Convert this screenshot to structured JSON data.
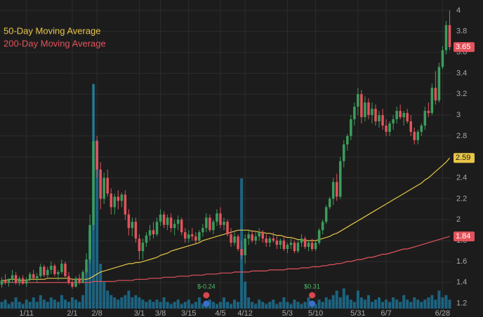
{
  "chart_data": {
    "type": "candlestick",
    "categories": [
      null,
      null,
      null,
      null,
      null,
      null,
      null,
      "1/11",
      null,
      null,
      null,
      null,
      null,
      null,
      null,
      null,
      null,
      null,
      null,
      null,
      "2/1",
      null,
      null,
      null,
      null,
      null,
      null,
      "2/8",
      null,
      null,
      null,
      null,
      null,
      null,
      null,
      null,
      null,
      null,
      null,
      "3/1",
      null,
      null,
      null,
      null,
      null,
      "3/8",
      null,
      null,
      null,
      null,
      null,
      null,
      null,
      "3/15",
      null,
      null,
      null,
      null,
      null,
      null,
      null,
      null,
      "4/5",
      null,
      null,
      null,
      null,
      null,
      null,
      "4/12",
      null,
      null,
      null,
      null,
      null,
      null,
      null,
      null,
      null,
      null,
      null,
      "5/3",
      null,
      null,
      null,
      null,
      null,
      null,
      null,
      "5/10",
      null,
      null,
      null,
      null,
      null,
      null,
      null,
      null,
      null,
      null,
      null,
      "5/31",
      null,
      null,
      null,
      null,
      null,
      null,
      null,
      "6/7",
      null,
      null,
      null,
      null,
      null,
      null,
      null,
      null,
      null,
      null,
      null,
      null,
      null,
      null,
      null,
      "6/28",
      null,
      null
    ],
    "ohlc": [
      [
        1.38,
        1.45,
        1.35,
        1.42
      ],
      [
        1.42,
        1.48,
        1.38,
        1.4
      ],
      [
        1.4,
        1.44,
        1.36,
        1.43
      ],
      [
        1.43,
        1.52,
        1.4,
        1.47
      ],
      [
        1.47,
        1.5,
        1.38,
        1.4
      ],
      [
        1.4,
        1.46,
        1.37,
        1.44
      ],
      [
        1.44,
        1.47,
        1.38,
        1.39
      ],
      [
        1.39,
        1.45,
        1.36,
        1.43
      ],
      [
        1.43,
        1.5,
        1.41,
        1.48
      ],
      [
        1.48,
        1.52,
        1.42,
        1.44
      ],
      [
        1.44,
        1.49,
        1.4,
        1.46
      ],
      [
        1.46,
        1.58,
        1.44,
        1.55
      ],
      [
        1.55,
        1.57,
        1.45,
        1.47
      ],
      [
        1.47,
        1.55,
        1.44,
        1.52
      ],
      [
        1.52,
        1.6,
        1.48,
        1.56
      ],
      [
        1.56,
        1.58,
        1.46,
        1.48
      ],
      [
        1.48,
        1.52,
        1.42,
        1.5
      ],
      [
        1.5,
        1.62,
        1.48,
        1.58
      ],
      [
        1.58,
        1.6,
        1.45,
        1.46
      ],
      [
        1.46,
        1.5,
        1.38,
        1.4
      ],
      [
        1.4,
        1.44,
        1.34,
        1.36
      ],
      [
        1.36,
        1.46,
        1.35,
        1.44
      ],
      [
        1.44,
        1.48,
        1.38,
        1.4
      ],
      [
        1.4,
        1.52,
        1.39,
        1.5
      ],
      [
        1.5,
        1.68,
        1.48,
        1.62
      ],
      [
        1.62,
        2.05,
        1.58,
        1.95
      ],
      [
        1.95,
        3.3,
        1.9,
        2.75
      ],
      [
        2.75,
        2.8,
        2.4,
        2.48
      ],
      [
        2.48,
        2.55,
        2.1,
        2.2
      ],
      [
        2.2,
        2.45,
        2.15,
        2.4
      ],
      [
        2.4,
        2.48,
        2.22,
        2.25
      ],
      [
        2.25,
        2.3,
        2.05,
        2.12
      ],
      [
        2.12,
        2.25,
        2.05,
        2.22
      ],
      [
        2.22,
        2.28,
        2.1,
        2.18
      ],
      [
        2.18,
        2.26,
        2.12,
        2.24
      ],
      [
        2.24,
        2.28,
        2.0,
        2.05
      ],
      [
        2.05,
        2.1,
        1.85,
        1.92
      ],
      [
        1.92,
        2.02,
        1.84,
        1.98
      ],
      [
        1.98,
        2.02,
        1.78,
        1.82
      ],
      [
        1.82,
        1.86,
        1.62,
        1.7
      ],
      [
        1.7,
        1.82,
        1.62,
        1.78
      ],
      [
        1.78,
        1.88,
        1.74,
        1.85
      ],
      [
        1.85,
        1.95,
        1.8,
        1.9
      ],
      [
        1.9,
        1.98,
        1.82,
        1.86
      ],
      [
        1.86,
        2.02,
        1.84,
        1.98
      ],
      [
        1.98,
        2.1,
        1.94,
        2.05
      ],
      [
        2.05,
        2.08,
        1.92,
        1.95
      ],
      [
        1.95,
        2.05,
        1.9,
        2.02
      ],
      [
        2.02,
        2.06,
        1.88,
        1.92
      ],
      [
        1.92,
        2.0,
        1.85,
        1.96
      ],
      [
        1.96,
        2.04,
        1.9,
        2.0
      ],
      [
        2.0,
        2.02,
        1.85,
        1.88
      ],
      [
        1.88,
        1.92,
        1.78,
        1.82
      ],
      [
        1.82,
        1.9,
        1.78,
        1.86
      ],
      [
        1.86,
        1.92,
        1.8,
        1.84
      ],
      [
        1.84,
        1.88,
        1.76,
        1.8
      ],
      [
        1.8,
        1.9,
        1.78,
        1.88
      ],
      [
        1.88,
        1.96,
        1.84,
        1.92
      ],
      [
        1.92,
        2.06,
        1.88,
        2.02
      ],
      [
        2.02,
        2.05,
        1.88,
        1.9
      ],
      [
        1.9,
        2.0,
        1.86,
        1.98
      ],
      [
        1.98,
        2.1,
        1.94,
        2.06
      ],
      [
        2.06,
        2.12,
        1.92,
        1.95
      ],
      [
        1.95,
        2.02,
        1.9,
        1.98
      ],
      [
        1.98,
        2.0,
        1.84,
        1.86
      ],
      [
        1.86,
        1.92,
        1.74,
        1.78
      ],
      [
        1.78,
        1.88,
        1.75,
        1.84
      ],
      [
        1.84,
        1.86,
        1.7,
        1.72
      ],
      [
        1.72,
        1.8,
        1.62,
        1.66
      ],
      [
        1.66,
        1.86,
        1.58,
        1.82
      ],
      [
        1.82,
        1.9,
        1.76,
        1.86
      ],
      [
        1.86,
        1.9,
        1.78,
        1.8
      ],
      [
        1.8,
        1.88,
        1.76,
        1.84
      ],
      [
        1.84,
        1.92,
        1.8,
        1.88
      ],
      [
        1.88,
        1.9,
        1.78,
        1.82
      ],
      [
        1.82,
        1.86,
        1.74,
        1.78
      ],
      [
        1.78,
        1.84,
        1.74,
        1.82
      ],
      [
        1.82,
        1.88,
        1.78,
        1.8
      ],
      [
        1.8,
        1.84,
        1.72,
        1.76
      ],
      [
        1.76,
        1.82,
        1.72,
        1.8
      ],
      [
        1.8,
        1.84,
        1.7,
        1.72
      ],
      [
        1.72,
        1.78,
        1.68,
        1.76
      ],
      [
        1.76,
        1.82,
        1.72,
        1.78
      ],
      [
        1.78,
        1.8,
        1.68,
        1.7
      ],
      [
        1.7,
        1.8,
        1.68,
        1.78
      ],
      [
        1.78,
        1.86,
        1.74,
        1.82
      ],
      [
        1.82,
        1.84,
        1.72,
        1.74
      ],
      [
        1.74,
        1.8,
        1.7,
        1.78
      ],
      [
        1.78,
        1.82,
        1.7,
        1.72
      ],
      [
        1.72,
        1.8,
        1.7,
        1.78
      ],
      [
        1.78,
        1.92,
        1.76,
        1.9
      ],
      [
        1.9,
        2.0,
        1.86,
        1.98
      ],
      [
        1.98,
        2.14,
        1.96,
        2.12
      ],
      [
        2.12,
        2.22,
        2.1,
        2.2
      ],
      [
        2.2,
        2.4,
        2.14,
        2.36
      ],
      [
        2.36,
        2.44,
        2.18,
        2.22
      ],
      [
        2.22,
        2.6,
        2.2,
        2.56
      ],
      [
        2.56,
        2.76,
        2.5,
        2.72
      ],
      [
        2.72,
        2.82,
        2.66,
        2.8
      ],
      [
        2.8,
        3.0,
        2.76,
        2.96
      ],
      [
        2.96,
        3.12,
        2.9,
        3.08
      ],
      [
        3.08,
        3.26,
        3.0,
        3.2
      ],
      [
        3.2,
        3.24,
        2.92,
        2.98
      ],
      [
        2.98,
        3.18,
        2.94,
        3.12
      ],
      [
        3.12,
        3.16,
        2.96,
        3.0
      ],
      [
        3.0,
        3.12,
        2.92,
        3.06
      ],
      [
        3.06,
        3.1,
        2.9,
        2.94
      ],
      [
        2.94,
        3.04,
        2.88,
        3.0
      ],
      [
        3.0,
        3.06,
        2.86,
        2.9
      ],
      [
        2.9,
        2.96,
        2.8,
        2.84
      ],
      [
        2.84,
        2.94,
        2.8,
        2.92
      ],
      [
        2.92,
        3.0,
        2.86,
        2.96
      ],
      [
        2.96,
        3.08,
        2.92,
        3.04
      ],
      [
        3.04,
        3.1,
        2.96,
        2.98
      ],
      [
        2.98,
        3.04,
        2.9,
        3.02
      ],
      [
        3.02,
        3.06,
        2.92,
        2.94
      ],
      [
        2.94,
        3.0,
        2.8,
        2.84
      ],
      [
        2.84,
        2.88,
        2.72,
        2.76
      ],
      [
        2.76,
        2.86,
        2.72,
        2.84
      ],
      [
        2.84,
        2.92,
        2.8,
        2.9
      ],
      [
        2.9,
        3.08,
        2.86,
        3.04
      ],
      [
        3.04,
        3.12,
        2.98,
        3.02
      ],
      [
        3.02,
        3.3,
        3.0,
        3.26
      ],
      [
        3.26,
        3.42,
        3.1,
        3.14
      ],
      [
        3.14,
        3.5,
        3.12,
        3.46
      ],
      [
        3.46,
        3.66,
        3.44,
        3.62
      ],
      [
        3.62,
        3.9,
        3.58,
        3.86
      ],
      [
        3.86,
        4.0,
        3.62,
        3.65
      ]
    ],
    "volume": [
      3,
      4,
      2,
      3,
      5,
      3,
      2,
      4,
      3,
      5,
      3,
      6,
      4,
      3,
      5,
      4,
      3,
      6,
      4,
      3,
      5,
      4,
      3,
      6,
      18,
      35,
      100,
      75,
      20,
      12,
      8,
      6,
      5,
      4,
      5,
      6,
      8,
      5,
      6,
      5,
      4,
      3,
      4,
      3,
      4,
      3,
      5,
      3,
      2,
      3,
      4,
      2,
      3,
      4,
      2,
      3,
      5,
      2,
      3,
      4,
      3,
      2,
      3,
      5,
      3,
      2,
      4,
      3,
      58,
      12,
      5,
      3,
      2,
      4,
      3,
      2,
      3,
      4,
      2,
      3,
      5,
      3,
      2,
      4,
      3,
      2,
      3,
      5,
      3,
      2,
      4,
      3,
      5,
      4,
      6,
      8,
      5,
      9,
      6,
      4,
      3,
      8,
      5,
      4,
      6,
      3,
      4,
      5,
      3,
      4,
      3,
      5,
      4,
      3,
      6,
      4,
      3,
      5,
      4,
      3,
      4,
      5,
      6,
      4,
      8,
      5,
      6,
      4
    ],
    "earnings": [
      null,
      null,
      null,
      null,
      null,
      null,
      null,
      null,
      null,
      null,
      null,
      null,
      null,
      null,
      null,
      null,
      null,
      null,
      null,
      null,
      null,
      null,
      null,
      null,
      null,
      null,
      null,
      null,
      null,
      null,
      null,
      null,
      null,
      null,
      null,
      null,
      null,
      null,
      null,
      null,
      null,
      null,
      null,
      null,
      null,
      null,
      null,
      null,
      null,
      null,
      null,
      null,
      null,
      null,
      null,
      null,
      null,
      null,
      "$-0.24",
      null,
      null,
      null,
      null,
      null,
      null,
      null,
      null,
      null,
      null,
      null,
      null,
      null,
      null,
      null,
      null,
      null,
      null,
      null,
      null,
      null,
      null,
      null,
      null,
      null,
      null,
      null,
      null,
      null,
      "$0.31",
      null,
      null,
      null,
      null,
      null,
      null,
      null,
      null,
      null,
      null,
      null,
      null,
      null,
      null,
      null,
      null,
      null,
      null,
      null,
      null,
      null,
      null,
      null,
      null,
      null,
      null,
      null,
      null,
      null,
      null,
      null,
      null,
      null,
      null,
      null,
      null,
      null,
      null,
      null
    ],
    "series": [
      {
        "name": "50-Day Moving Average",
        "color": "#e8c547",
        "values": [
          1.42,
          1.42,
          1.43,
          1.43,
          1.43,
          1.42,
          1.42,
          1.42,
          1.43,
          1.43,
          1.43,
          1.43,
          1.43,
          1.44,
          1.44,
          1.44,
          1.44,
          1.44,
          1.44,
          1.44,
          1.43,
          1.43,
          1.43,
          1.43,
          1.43,
          1.44,
          1.46,
          1.48,
          1.5,
          1.51,
          1.52,
          1.53,
          1.54,
          1.55,
          1.56,
          1.57,
          1.58,
          1.58,
          1.59,
          1.59,
          1.6,
          1.61,
          1.62,
          1.63,
          1.64,
          1.66,
          1.67,
          1.68,
          1.7,
          1.71,
          1.72,
          1.73,
          1.74,
          1.75,
          1.76,
          1.77,
          1.78,
          1.8,
          1.81,
          1.82,
          1.83,
          1.84,
          1.85,
          1.86,
          1.87,
          1.88,
          1.89,
          1.9,
          1.9,
          1.9,
          1.9,
          1.89,
          1.89,
          1.88,
          1.88,
          1.87,
          1.87,
          1.86,
          1.85,
          1.85,
          1.84,
          1.83,
          1.83,
          1.82,
          1.81,
          1.81,
          1.8,
          1.8,
          1.8,
          1.8,
          1.81,
          1.82,
          1.83,
          1.84,
          1.86,
          1.87,
          1.89,
          1.91,
          1.93,
          1.95,
          1.97,
          1.99,
          2.01,
          2.03,
          2.05,
          2.07,
          2.09,
          2.11,
          2.13,
          2.15,
          2.17,
          2.19,
          2.21,
          2.23,
          2.25,
          2.27,
          2.29,
          2.31,
          2.33,
          2.35,
          2.38,
          2.4,
          2.43,
          2.46,
          2.49,
          2.52,
          2.55,
          2.59
        ]
      },
      {
        "name": "200-Day Moving Average",
        "color": "#e2535c",
        "values": [
          1.4,
          1.4,
          1.4,
          1.4,
          1.4,
          1.4,
          1.4,
          1.4,
          1.4,
          1.4,
          1.4,
          1.4,
          1.4,
          1.4,
          1.4,
          1.4,
          1.4,
          1.4,
          1.4,
          1.4,
          1.4,
          1.4,
          1.4,
          1.4,
          1.4,
          1.4,
          1.41,
          1.41,
          1.41,
          1.41,
          1.41,
          1.41,
          1.41,
          1.42,
          1.42,
          1.42,
          1.42,
          1.42,
          1.43,
          1.43,
          1.43,
          1.43,
          1.44,
          1.44,
          1.44,
          1.44,
          1.45,
          1.45,
          1.45,
          1.45,
          1.46,
          1.46,
          1.46,
          1.46,
          1.47,
          1.47,
          1.47,
          1.47,
          1.48,
          1.48,
          1.48,
          1.48,
          1.49,
          1.49,
          1.49,
          1.49,
          1.5,
          1.5,
          1.5,
          1.5,
          1.5,
          1.51,
          1.51,
          1.51,
          1.51,
          1.51,
          1.52,
          1.52,
          1.52,
          1.52,
          1.52,
          1.53,
          1.53,
          1.53,
          1.53,
          1.54,
          1.54,
          1.54,
          1.55,
          1.55,
          1.55,
          1.56,
          1.56,
          1.57,
          1.57,
          1.58,
          1.58,
          1.59,
          1.6,
          1.6,
          1.61,
          1.62,
          1.62,
          1.63,
          1.64,
          1.64,
          1.65,
          1.66,
          1.67,
          1.67,
          1.68,
          1.69,
          1.7,
          1.71,
          1.72,
          1.72,
          1.73,
          1.74,
          1.75,
          1.76,
          1.77,
          1.78,
          1.79,
          1.8,
          1.81,
          1.82,
          1.83,
          1.84
        ]
      }
    ],
    "up_color": "#3c9d5c",
    "down_color": "#e2535c",
    "volume_color": "#1d6b8c",
    "ylim": [
      1.07,
      4.1
    ],
    "yticks": [
      1.2,
      1.4,
      1.6,
      1.8,
      2,
      2.2,
      2.4,
      2.6,
      2.8,
      3,
      3.2,
      3.4,
      3.6,
      3.8,
      4
    ],
    "y2lim": [
      0,
      100
    ],
    "grid": true
  }
}
